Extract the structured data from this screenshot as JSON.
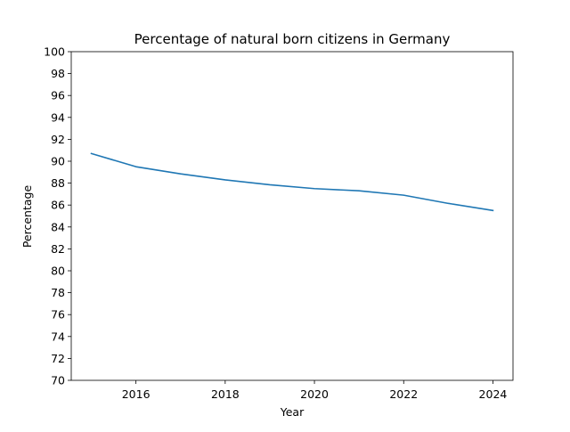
{
  "chart_data": {
    "type": "line",
    "title": "Percentage of natural born citizens in Germany",
    "xlabel": "Year",
    "ylabel": "Percentage",
    "xlim": [
      2014.55,
      2024.45
    ],
    "ylim": [
      70,
      100
    ],
    "xticks": [
      2016,
      2018,
      2020,
      2022,
      2024
    ],
    "yticks": [
      70,
      72,
      74,
      76,
      78,
      80,
      82,
      84,
      86,
      88,
      90,
      92,
      94,
      96,
      98,
      100
    ],
    "grid": false,
    "series": [
      {
        "color": "#1f77b4",
        "x": [
          2015,
          2016,
          2017,
          2018,
          2019,
          2020,
          2021,
          2022,
          2023,
          2024
        ],
        "y": [
          90.7,
          89.5,
          88.85,
          88.3,
          87.85,
          87.5,
          87.3,
          86.9,
          86.15,
          85.5
        ]
      }
    ]
  }
}
